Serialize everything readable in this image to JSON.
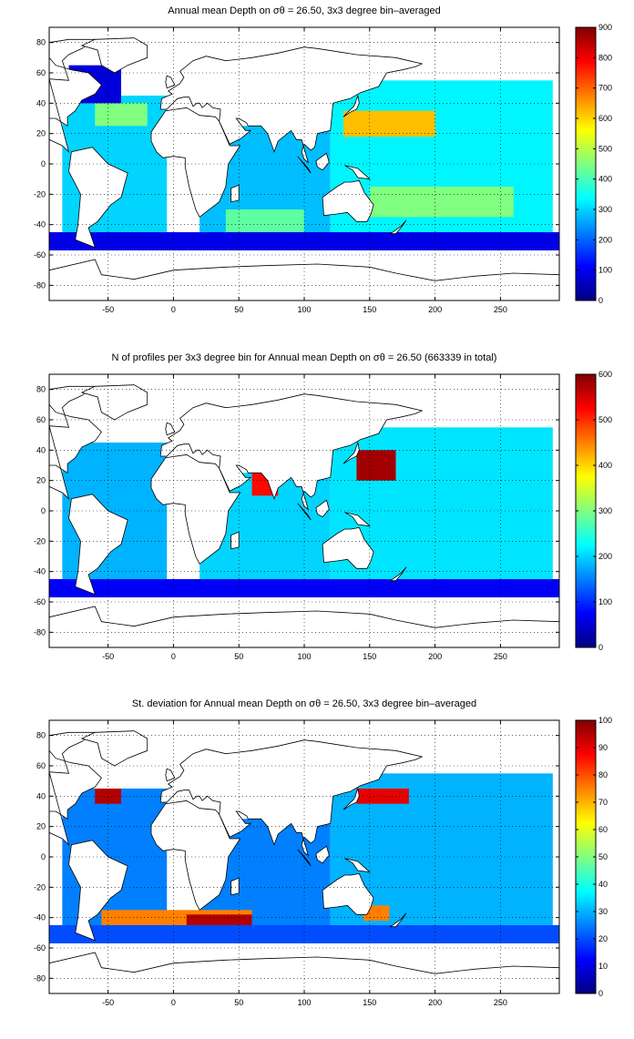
{
  "chart_data": [
    {
      "type": "heatmap",
      "title": "Annual mean Depth on σθ = 26.50, 3x3 degree bin–averaged",
      "xlabel": "",
      "ylabel": "",
      "xlim": [
        -95,
        295
      ],
      "ylim": [
        -90,
        90
      ],
      "xticks": [
        -50,
        0,
        50,
        100,
        150,
        200,
        250
      ],
      "yticks": [
        -80,
        -60,
        -40,
        -20,
        0,
        20,
        40,
        60,
        80
      ],
      "grid": true,
      "colorbar": {
        "min": 0,
        "max": 900,
        "ticks": [
          0,
          100,
          200,
          300,
          400,
          500,
          600,
          700,
          800,
          900
        ]
      },
      "regions": [
        {
          "lon": [
            -85,
            -5
          ],
          "lat": [
            -55,
            45
          ],
          "value": 300
        },
        {
          "lon": [
            -60,
            -20
          ],
          "lat": [
            25,
            40
          ],
          "value": 450
        },
        {
          "lon": [
            -80,
            -40
          ],
          "lat": [
            40,
            65
          ],
          "value": 80
        },
        {
          "lon": [
            20,
            120
          ],
          "lat": [
            -50,
            25
          ],
          "value": 280
        },
        {
          "lon": [
            40,
            100
          ],
          "lat": [
            -45,
            -30
          ],
          "value": 420
        },
        {
          "lon": [
            120,
            290
          ],
          "lat": [
            -55,
            55
          ],
          "value": 330
        },
        {
          "lon": [
            130,
            200
          ],
          "lat": [
            18,
            35
          ],
          "value": 620
        },
        {
          "lon": [
            150,
            260
          ],
          "lat": [
            -35,
            -15
          ],
          "value": 450
        },
        {
          "lon": [
            -95,
            295
          ],
          "lat": [
            -57,
            -45
          ],
          "value": 90
        }
      ]
    },
    {
      "type": "heatmap",
      "title": "N of profiles per 3x3 degree bin for Annual mean Depth on σθ = 26.50 (663339 in total)",
      "xlabel": "",
      "ylabel": "",
      "xlim": [
        -95,
        295
      ],
      "ylim": [
        -90,
        90
      ],
      "xticks": [
        -50,
        0,
        50,
        100,
        150,
        200,
        250
      ],
      "yticks": [
        -80,
        -60,
        -40,
        -20,
        0,
        20,
        40,
        60,
        80
      ],
      "grid": true,
      "colorbar": {
        "min": 0,
        "max": 600,
        "ticks": [
          0,
          100,
          200,
          300,
          400,
          500,
          600
        ]
      },
      "regions": [
        {
          "lon": [
            -85,
            -5
          ],
          "lat": [
            -55,
            45
          ],
          "value": 180
        },
        {
          "lon": [
            20,
            120
          ],
          "lat": [
            -50,
            25
          ],
          "value": 200
        },
        {
          "lon": [
            60,
            80
          ],
          "lat": [
            10,
            25
          ],
          "value": 520
        },
        {
          "lon": [
            120,
            290
          ],
          "lat": [
            -55,
            55
          ],
          "value": 210
        },
        {
          "lon": [
            140,
            170
          ],
          "lat": [
            20,
            40
          ],
          "value": 580
        },
        {
          "lon": [
            -95,
            295
          ],
          "lat": [
            -57,
            -45
          ],
          "value": 70
        }
      ]
    },
    {
      "type": "heatmap",
      "title": "St. deviation for Annual mean Depth on σθ = 26.50, 3x3 degree bin–averaged",
      "xlabel": "",
      "ylabel": "",
      "xlim": [
        -95,
        295
      ],
      "ylim": [
        -90,
        90
      ],
      "xticks": [
        -50,
        0,
        50,
        100,
        150,
        200,
        250
      ],
      "yticks": [
        -80,
        -60,
        -40,
        -20,
        0,
        20,
        40,
        60,
        80
      ],
      "grid": true,
      "colorbar": {
        "min": 0,
        "max": 100,
        "ticks": [
          0,
          10,
          20,
          30,
          40,
          50,
          60,
          70,
          80,
          90,
          100
        ]
      },
      "regions": [
        {
          "lon": [
            -85,
            -5
          ],
          "lat": [
            -55,
            45
          ],
          "value": 25
        },
        {
          "lon": [
            -60,
            -40
          ],
          "lat": [
            35,
            45
          ],
          "value": 95
        },
        {
          "lon": [
            20,
            120
          ],
          "lat": [
            -50,
            25
          ],
          "value": 25
        },
        {
          "lon": [
            -55,
            60
          ],
          "lat": [
            -45,
            -35
          ],
          "value": 75
        },
        {
          "lon": [
            10,
            60
          ],
          "lat": [
            -45,
            -38
          ],
          "value": 95
        },
        {
          "lon": [
            120,
            290
          ],
          "lat": [
            -55,
            55
          ],
          "value": 30
        },
        {
          "lon": [
            140,
            180
          ],
          "lat": [
            35,
            45
          ],
          "value": 90
        },
        {
          "lon": [
            145,
            165
          ],
          "lat": [
            -42,
            -32
          ],
          "value": 75
        },
        {
          "lon": [
            -95,
            295
          ],
          "lat": [
            -57,
            -45
          ],
          "value": 20
        }
      ]
    }
  ]
}
